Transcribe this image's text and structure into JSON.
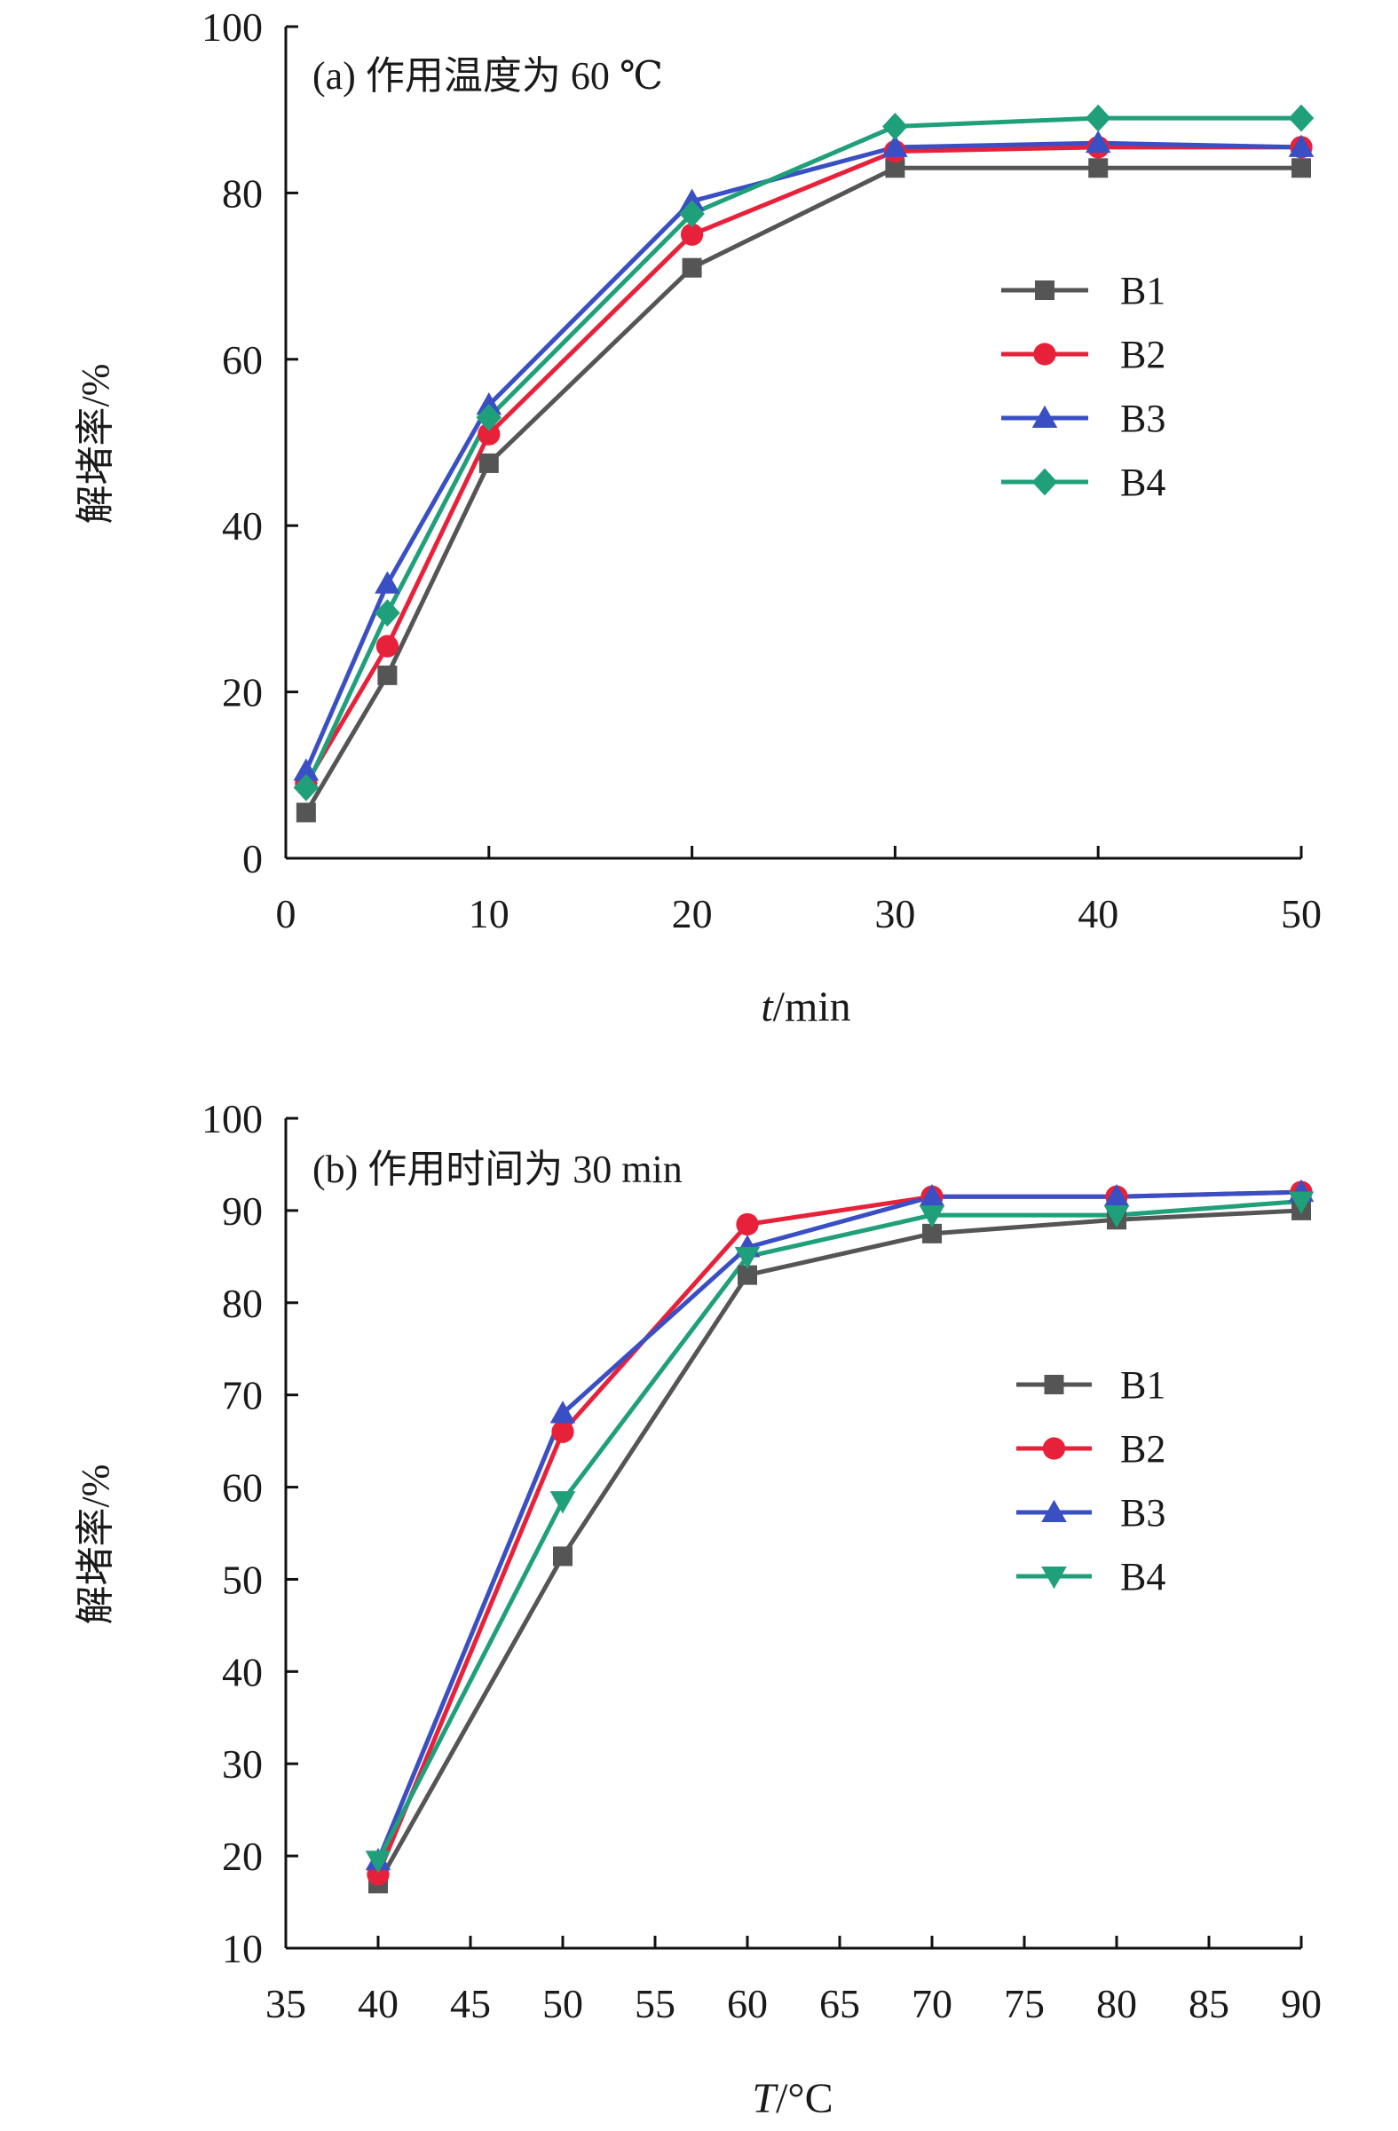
{
  "chart_data": [
    {
      "type": "line",
      "panel_label": "(a) 作用温度为 60 ℃",
      "xlabel_italic": "t",
      "xlabel_unit": "/min",
      "ylabel": "解堵率/%",
      "x": [
        1,
        5,
        10,
        20,
        30,
        40,
        50
      ],
      "x_ticks": [
        0,
        10,
        20,
        30,
        40,
        50
      ],
      "x_tick_labels": [
        "0",
        "10",
        "20",
        "30",
        "40",
        "50"
      ],
      "y_ticks": [
        0,
        20,
        40,
        60,
        80,
        100
      ],
      "y_tick_labels": [
        "0",
        "20",
        "40",
        "60",
        "80",
        "100"
      ],
      "xlim": [
        0,
        50
      ],
      "ylim": [
        0,
        100
      ],
      "grid": false,
      "legend_position": "right-middle",
      "series": [
        {
          "name": "B1",
          "values": [
            5.5,
            22,
            47.5,
            71,
            83,
            83,
            83
          ],
          "color": "#555555",
          "marker": "square"
        },
        {
          "name": "B2",
          "values": [
            9,
            25.5,
            51,
            75,
            85,
            85.5,
            85.5
          ],
          "color": "#e8213a",
          "marker": "circle"
        },
        {
          "name": "B3",
          "values": [
            10.5,
            33,
            54.5,
            79,
            85.5,
            86,
            85.5
          ],
          "color": "#3a4fc4",
          "marker": "triangle-up"
        },
        {
          "name": "B4",
          "values": [
            8.5,
            29.5,
            53,
            77.5,
            88,
            89,
            89
          ],
          "color": "#1fa07a",
          "marker": "diamond"
        }
      ],
      "legend_items": [
        {
          "name": "B1",
          "color": "#555555",
          "marker": "square"
        },
        {
          "name": "B2",
          "color": "#e8213a",
          "marker": "circle"
        },
        {
          "name": "B3",
          "color": "#3a4fc4",
          "marker": "triangle-up"
        },
        {
          "name": "B4",
          "color": "#1fa07a",
          "marker": "diamond"
        }
      ]
    },
    {
      "type": "line",
      "panel_label": "(b) 作用时间为 30 min",
      "xlabel_italic": "T",
      "xlabel_unit": "/°C",
      "ylabel": "解堵率/%",
      "x": [
        40,
        50,
        60,
        70,
        80,
        90
      ],
      "x_ticks": [
        35,
        40,
        45,
        50,
        55,
        60,
        65,
        70,
        75,
        80,
        85,
        90
      ],
      "x_tick_labels": [
        "35",
        "40",
        "45",
        "50",
        "55",
        "60",
        "65",
        "70",
        "75",
        "80",
        "85",
        "90"
      ],
      "y_ticks": [
        10,
        20,
        30,
        40,
        50,
        60,
        70,
        80,
        90,
        100
      ],
      "y_tick_labels": [
        "10",
        "20",
        "30",
        "40",
        "50",
        "60",
        "70",
        "80",
        "90",
        "100"
      ],
      "xlim": [
        35,
        90
      ],
      "ylim": [
        10,
        100
      ],
      "grid": false,
      "legend_position": "right-middle",
      "series": [
        {
          "name": "B1",
          "values": [
            17,
            52.5,
            83,
            87.5,
            89,
            90
          ],
          "color": "#555555",
          "marker": "square"
        },
        {
          "name": "B2",
          "values": [
            18,
            66,
            88.5,
            91.5,
            91.5,
            92
          ],
          "color": "#e8213a",
          "marker": "circle"
        },
        {
          "name": "B3",
          "values": [
            19.5,
            68,
            86,
            91.5,
            91.5,
            92
          ],
          "color": "#3a4fc4",
          "marker": "triangle-up"
        },
        {
          "name": "B4",
          "values": [
            19.5,
            58.5,
            85,
            89.5,
            89.5,
            91
          ],
          "color": "#1fa07a",
          "marker": "triangle-down"
        }
      ],
      "legend_items": [
        {
          "name": "B1",
          "color": "#555555",
          "marker": "square"
        },
        {
          "name": "B2",
          "color": "#e8213a",
          "marker": "circle"
        },
        {
          "name": "B3",
          "color": "#3a4fc4",
          "marker": "triangle-up"
        },
        {
          "name": "B4",
          "color": "#1fa07a",
          "marker": "triangle-down"
        }
      ]
    }
  ]
}
